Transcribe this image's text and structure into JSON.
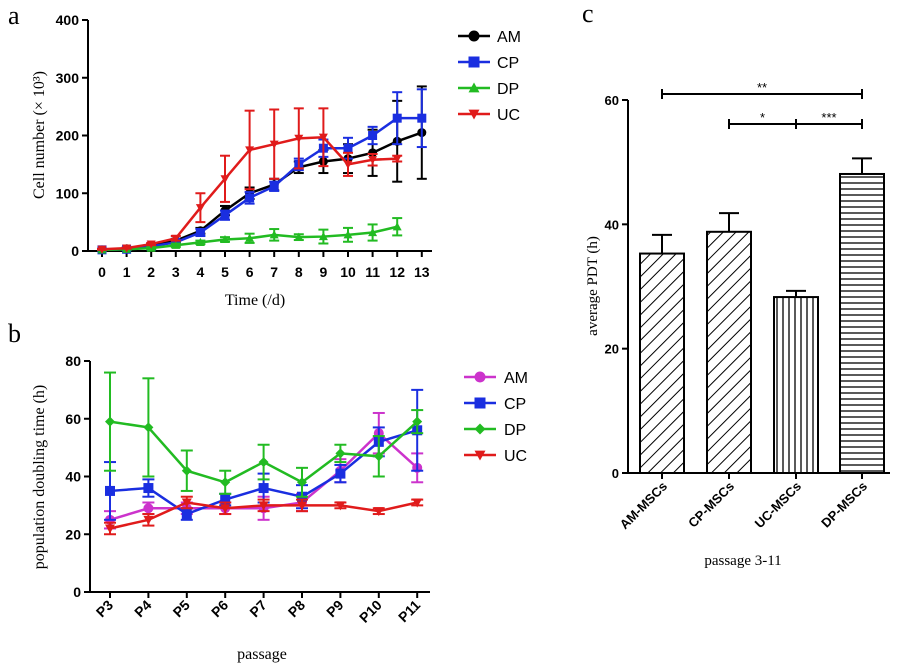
{
  "colors": {
    "AM_a": "#000000",
    "AM_b": "#cc33cc",
    "CP": "#1a2ee0",
    "DP": "#22bb22",
    "UC": "#e01b1b",
    "axis": "#000000"
  },
  "chart_data": [
    {
      "panel": "a",
      "type": "line",
      "xlabel": "Time (/d)",
      "ylabel": "Cell number (× 10³)",
      "x": [
        0,
        1,
        2,
        3,
        4,
        5,
        6,
        7,
        8,
        9,
        10,
        11,
        12,
        13
      ],
      "ylim": [
        0,
        400
      ],
      "yticks": [
        0,
        100,
        200,
        300,
        400
      ],
      "legend_position": "top-right",
      "series": [
        {
          "name": "AM",
          "marker": "circle",
          "color_key": "AM_a",
          "x": [
            0,
            1,
            2,
            3,
            4,
            5,
            6,
            7,
            8,
            9,
            10,
            11,
            12,
            13
          ],
          "values": [
            2,
            4,
            10,
            18,
            35,
            70,
            100,
            115,
            145,
            155,
            160,
            170,
            190,
            205
          ],
          "err": [
            1,
            1,
            2,
            3,
            5,
            8,
            10,
            10,
            10,
            20,
            25,
            40,
            70,
            80
          ]
        },
        {
          "name": "CP",
          "marker": "square",
          "color_key": "CP",
          "x": [
            0,
            1,
            2,
            3,
            4,
            5,
            6,
            7,
            8,
            9,
            10,
            11,
            12,
            13
          ],
          "values": [
            2,
            3,
            8,
            15,
            32,
            62,
            92,
            112,
            150,
            178,
            178,
            200,
            230,
            230
          ],
          "err": [
            1,
            1,
            2,
            3,
            6,
            8,
            10,
            8,
            10,
            15,
            18,
            15,
            45,
            50
          ]
        },
        {
          "name": "DP",
          "marker": "triangle-up",
          "color_key": "DP",
          "x": [
            0,
            1,
            2,
            3,
            4,
            5,
            6,
            7,
            8,
            9,
            10,
            11,
            12
          ],
          "values": [
            2,
            3,
            5,
            10,
            15,
            20,
            22,
            28,
            24,
            25,
            28,
            32,
            42
          ],
          "err": [
            1,
            1,
            2,
            3,
            3,
            4,
            8,
            10,
            5,
            12,
            12,
            14,
            15
          ]
        },
        {
          "name": "UC",
          "marker": "triangle-down",
          "color_key": "UC",
          "x": [
            0,
            1,
            2,
            3,
            4,
            5,
            6,
            7,
            8,
            9,
            10,
            11,
            12
          ],
          "values": [
            3,
            5,
            12,
            22,
            75,
            125,
            175,
            185,
            195,
            197,
            150,
            158,
            160
          ],
          "err": [
            1,
            1,
            2,
            4,
            25,
            40,
            68,
            60,
            52,
            50,
            20,
            10,
            5
          ]
        }
      ]
    },
    {
      "panel": "b",
      "type": "line",
      "xlabel": "passage",
      "ylabel": "population doubling time (h)",
      "categories": [
        "P3",
        "P4",
        "P5",
        "P6",
        "P7",
        "P8",
        "P9",
        "P10",
        "P11"
      ],
      "ylim": [
        0,
        80
      ],
      "yticks": [
        0,
        20,
        40,
        60,
        80
      ],
      "legend_position": "top-right",
      "series": [
        {
          "name": "AM",
          "marker": "circle",
          "color_key": "AM_b",
          "values": [
            25,
            29,
            29,
            29,
            29,
            31,
            42,
            55,
            43
          ],
          "err": [
            3,
            2,
            2,
            2,
            4,
            3,
            4,
            7,
            5
          ]
        },
        {
          "name": "CP",
          "marker": "square",
          "color_key": "CP",
          "values": [
            35,
            36,
            27,
            32,
            36,
            33,
            41,
            52,
            56
          ],
          "err": [
            10,
            3,
            2,
            2,
            5,
            4,
            3,
            5,
            14
          ]
        },
        {
          "name": "DP",
          "marker": "diamond",
          "color_key": "DP",
          "values": [
            59,
            57,
            42,
            38,
            45,
            38,
            48,
            47,
            59
          ],
          "err": [
            17,
            17,
            7,
            4,
            6,
            5,
            3,
            7,
            4
          ]
        },
        {
          "name": "UC",
          "marker": "triangle-down",
          "color_key": "UC",
          "values": [
            22,
            25,
            31,
            29,
            30,
            30,
            30,
            28,
            31
          ],
          "err": [
            2,
            2,
            2,
            2,
            2,
            2,
            1,
            1,
            1
          ]
        }
      ]
    },
    {
      "panel": "c",
      "type": "bar",
      "xlabel": "passage 3-11",
      "ylabel": "average PDT (h)",
      "categories": [
        "AM-MSCs",
        "CP-MSCs",
        "UC-MSCs",
        "DP-MSCs"
      ],
      "values": [
        35.3,
        38.8,
        28.3,
        48.1
      ],
      "err": [
        3,
        3,
        1,
        2.5
      ],
      "ylim": [
        0,
        60
      ],
      "yticks": [
        0,
        20,
        40,
        60
      ],
      "patterns": [
        "diag-down",
        "diag-down",
        "vertical",
        "horizontal"
      ],
      "significance": [
        {
          "from": 0,
          "to": 3,
          "label": "**"
        },
        {
          "from": 1,
          "to": 2,
          "label": "*"
        },
        {
          "from": 2,
          "to": 3,
          "label": "***"
        }
      ]
    }
  ],
  "panel_labels": {
    "a": "a",
    "b": "b",
    "c": "c"
  }
}
